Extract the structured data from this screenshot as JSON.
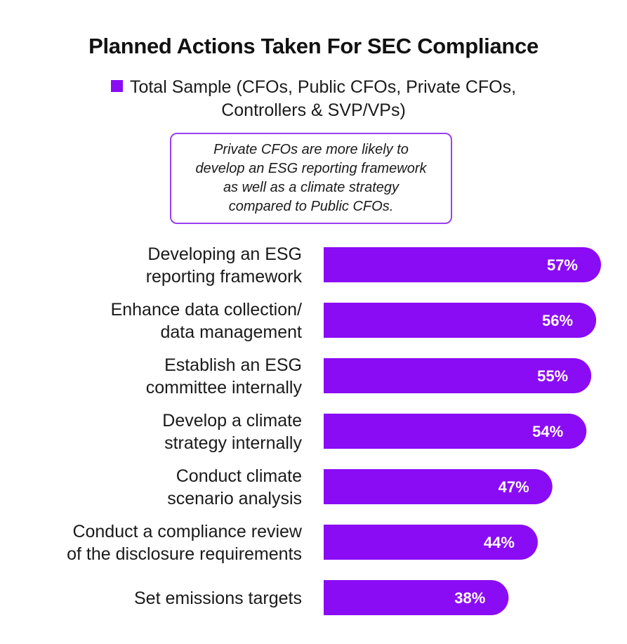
{
  "chart_data": {
    "type": "bar",
    "orientation": "horizontal",
    "title": "Planned Actions Taken For SEC Compliance",
    "legend": {
      "placement": "top-center",
      "lines": [
        "Total Sample (CFOs, Public CFOs, Private CFOs,",
        "Controllers & SVP/VPs)"
      ]
    },
    "annotation": [
      "Private CFOs are more likely to",
      "develop an ESG reporting framework",
      "as well as a climate strategy",
      "compared to Public CFOs."
    ],
    "categories": [
      [
        "Developing an ESG",
        "reporting framework"
      ],
      [
        "Enhance data collection/",
        "data management"
      ],
      [
        "Establish an ESG",
        "committee internally"
      ],
      [
        "Develop a climate",
        "strategy internally"
      ],
      [
        "Conduct climate",
        "scenario analysis"
      ],
      [
        "Conduct a compliance review",
        "of the disclosure requirements"
      ],
      [
        "Set emissions targets"
      ]
    ],
    "series": [
      {
        "values": [
          57,
          56,
          55,
          54,
          47,
          44,
          38
        ],
        "labels": [
          "57%",
          "56%",
          "55%",
          "54%",
          "47%",
          "44%",
          "38%"
        ]
      }
    ],
    "unit": "%",
    "xlim": [
      0,
      57
    ],
    "grid": false,
    "bar_color": "#8a0cf5"
  }
}
